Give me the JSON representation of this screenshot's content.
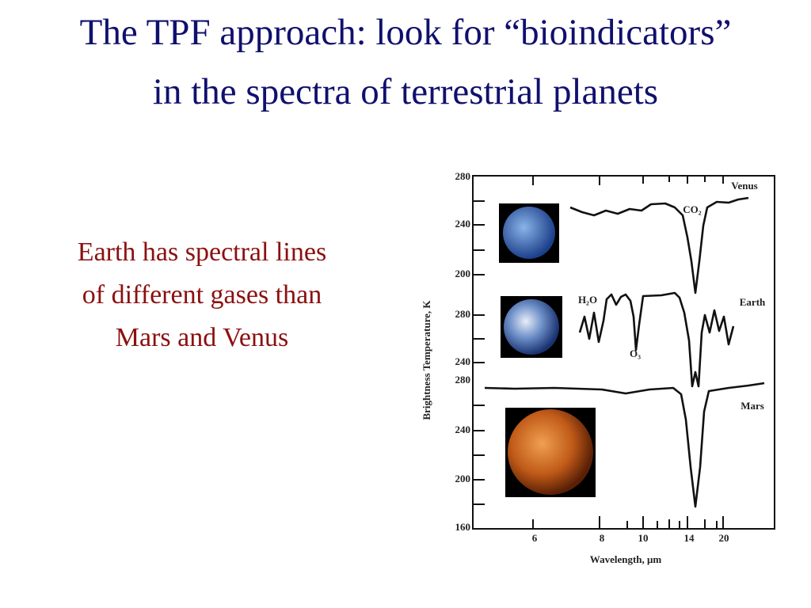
{
  "slide": {
    "title": "The TPF approach:  look for “bioindicators” in the spectra of terrestrial planets",
    "body": "Earth has spectral lines of different gases than Mars and Venus"
  },
  "figure": {
    "y_axis_label": "Brightness Temperature, K",
    "x_axis_label": "Wavelength, μm",
    "venus_ticks": [
      "280",
      "240",
      "200"
    ],
    "earth_ticks": [
      "280",
      "240"
    ],
    "mars_ticks": [
      "280",
      "240",
      "200",
      "160"
    ],
    "x_ticks": [
      "6",
      "8",
      "10",
      "14",
      "20"
    ],
    "labels": {
      "venus": "Venus",
      "co2": "CO₂",
      "earth": "Earth",
      "h2o": "H₂O",
      "o3": "O₃",
      "mars": "Mars"
    }
  }
}
